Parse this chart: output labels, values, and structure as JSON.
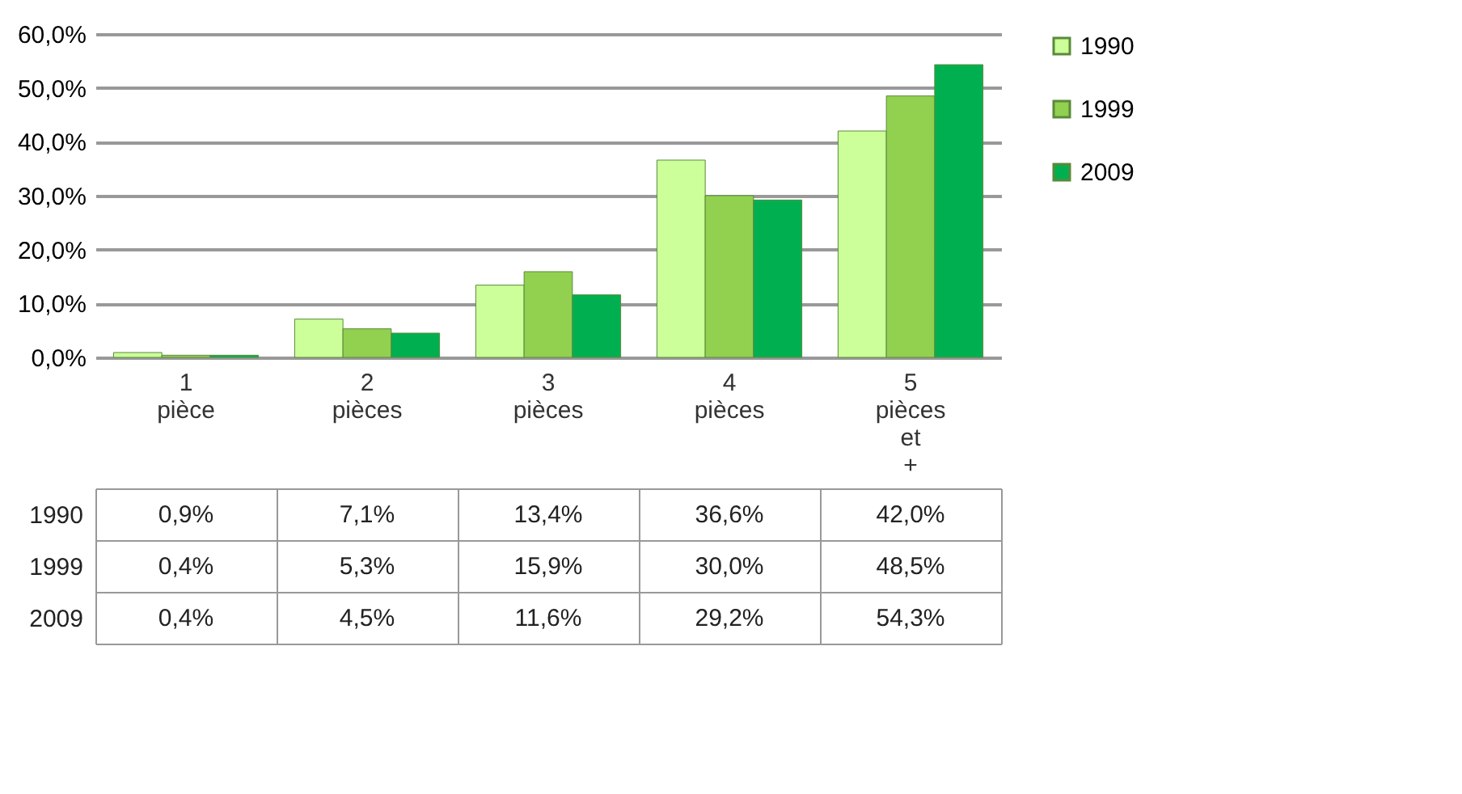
{
  "chart_data": {
    "type": "bar",
    "categories": [
      "1 pièce",
      "2 pièces",
      "3 pièces",
      "4 pièces",
      "5 pièces et +"
    ],
    "series": [
      {
        "name": "1990",
        "color": "#ccff99",
        "values": [
          0.9,
          7.1,
          13.4,
          36.6,
          42.0
        ],
        "value_labels": [
          "0,9%",
          "7,1%",
          "13,4%",
          "36,6%",
          "42,0%"
        ]
      },
      {
        "name": "1999",
        "color": "#92d050",
        "values": [
          0.4,
          5.3,
          15.9,
          30.0,
          48.5
        ],
        "value_labels": [
          "0,4%",
          "5,3%",
          "15,9%",
          "30,0%",
          "48,5%"
        ]
      },
      {
        "name": "2009",
        "color": "#00b050",
        "values": [
          0.4,
          4.5,
          11.6,
          29.2,
          54.3
        ],
        "value_labels": [
          "0,4%",
          "4,5%",
          "11,6%",
          "29,2%",
          "54,3%"
        ]
      }
    ],
    "ylim": [
      0,
      60
    ],
    "yticks": [
      {
        "value": 0,
        "label": "0,0%"
      },
      {
        "value": 10,
        "label": "10,0%"
      },
      {
        "value": 20,
        "label": "20,0%"
      },
      {
        "value": 30,
        "label": "30,0%"
      },
      {
        "value": 40,
        "label": "40,0%"
      },
      {
        "value": 50,
        "label": "50,0%"
      },
      {
        "value": 60,
        "label": "60,0%"
      }
    ],
    "grid": true,
    "legend": "right"
  }
}
